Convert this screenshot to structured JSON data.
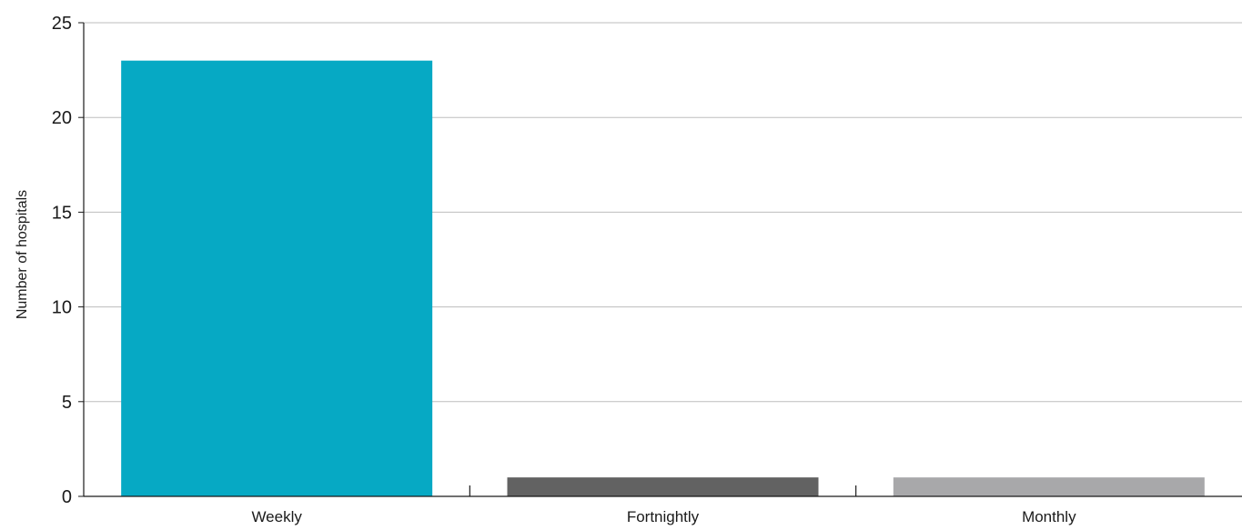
{
  "chart_data": {
    "type": "bar",
    "title": "",
    "xlabel": "",
    "ylabel": "Number of hospitals",
    "categories": [
      "Weekly",
      "Fortnightly",
      "Monthly"
    ],
    "values": [
      23,
      1,
      1
    ],
    "colors": [
      "#06a9c4",
      "#626262",
      "#a8a8aa"
    ],
    "ylim": [
      0,
      25
    ],
    "yticks": [
      0,
      5,
      10,
      15,
      20,
      25
    ],
    "grid": true,
    "legend": "none"
  },
  "style": {
    "grid_color": "#bdbdbd",
    "axis_color": "#1a1a1a"
  }
}
